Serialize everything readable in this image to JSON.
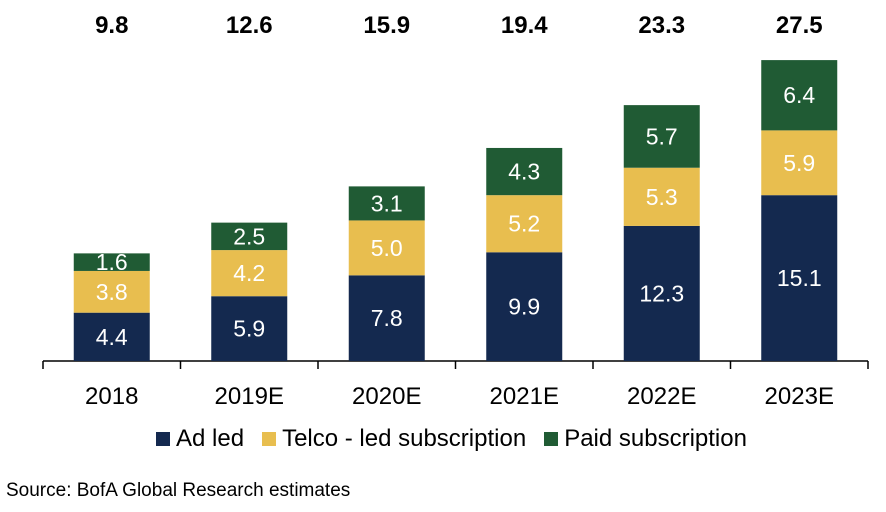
{
  "chart_data": {
    "type": "bar",
    "stacked": true,
    "categories": [
      "2018",
      "2019E",
      "2020E",
      "2021E",
      "2022E",
      "2023E"
    ],
    "series": [
      {
        "name": "Ad led",
        "color": "#14294f",
        "values": [
          4.4,
          5.9,
          7.8,
          9.9,
          12.3,
          15.1
        ]
      },
      {
        "name": "Telco - led subscription",
        "color": "#e8be4f",
        "values": [
          3.8,
          4.2,
          5.0,
          5.2,
          5.3,
          5.9
        ]
      },
      {
        "name": "Paid subscription",
        "color": "#205b34",
        "values": [
          1.6,
          2.5,
          3.1,
          4.3,
          5.7,
          6.4
        ]
      }
    ],
    "totals": [
      "9.8",
      "12.6",
      "15.9",
      "19.4",
      "23.3",
      "27.5"
    ],
    "segment_labels": [
      [
        "4.4",
        "5.9",
        "7.8",
        "9.9",
        "12.3",
        "15.1"
      ],
      [
        "3.8",
        "4.2",
        "5.0",
        "5.2",
        "5.3",
        "5.9"
      ],
      [
        "1.6",
        "2.5",
        "3.1",
        "4.3",
        "5.7",
        "6.4"
      ]
    ],
    "ylim": [
      0,
      27.5
    ],
    "title": "",
    "xlabel": "",
    "ylabel": "",
    "legend_position": "bottom"
  },
  "legend": {
    "items": [
      {
        "label": "Ad led",
        "color": "#14294f"
      },
      {
        "label": "Telco - led subscription",
        "color": "#e8be4f"
      },
      {
        "label": "Paid subscription",
        "color": "#205b34"
      }
    ]
  },
  "source": "Source: BofA Global Research estimates"
}
